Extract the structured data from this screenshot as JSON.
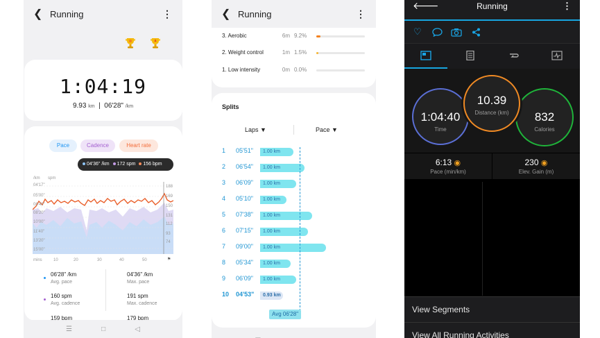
{
  "samsung_summary": {
    "title": "Running",
    "duration": "1:04:19",
    "distance": "9.93",
    "distance_unit": "km",
    "pace": "06'28\"",
    "pace_unit": "/km",
    "chart_tabs": [
      "Pace",
      "Cadence",
      "Heart rate"
    ],
    "tooltip": {
      "pace": "04'36\" /km",
      "cadence": "172 spm",
      "hr": "156 bpm"
    },
    "y_units": {
      "pace": "/km",
      "cadence": "spm"
    },
    "y_ticks_pace": [
      "04'17\"",
      "05'00\"",
      "06'40\"",
      "08'20\"",
      "10'00\"",
      "11'40\"",
      "13'20\"",
      "15'00\""
    ],
    "y_ticks_right": [
      "188",
      "169",
      "150",
      "131",
      "112",
      "93",
      "74"
    ],
    "x_unit": "mins",
    "x_ticks": [
      "10",
      "20",
      "30",
      "40",
      "50"
    ],
    "stats": [
      {
        "value": "06'28\" /km",
        "label": "Avg. pace"
      },
      {
        "value": "04'36\" /km",
        "label": "Max. pace"
      },
      {
        "value": "160 spm",
        "label": "Avg. cadence"
      },
      {
        "value": "191 spm",
        "label": "Max. cadence"
      },
      {
        "value": "159 bpm",
        "label": ""
      },
      {
        "value": "179 bpm",
        "label": ""
      }
    ],
    "colors": {
      "pace": "#2196f3",
      "cadence": "#a35fd0",
      "hr": "#f36d3a"
    }
  },
  "samsung_splits": {
    "title": "Running",
    "zones": [
      {
        "name": "3. Aerobic",
        "time": "6m",
        "percent": "9.2%",
        "fraction": 0.092,
        "color": "#f4821f"
      },
      {
        "name": "2. Weight control",
        "time": "1m",
        "percent": "1.5%",
        "fraction": 0.015,
        "color": "#f7b734"
      },
      {
        "name": "1. Low intensity",
        "time": "0m",
        "percent": "0.0%",
        "fraction": 0.0,
        "color": "#cccccc"
      }
    ],
    "splits_title": "Splits",
    "col_laps": "Laps",
    "col_pace": "Pace",
    "laps": [
      {
        "no": "1",
        "pace": "05'51\"",
        "dist": "1.00 km",
        "seconds": 351
      },
      {
        "no": "2",
        "pace": "06'54\"",
        "dist": "1.00 km",
        "seconds": 414
      },
      {
        "no": "3",
        "pace": "06'09\"",
        "dist": "1.00 km",
        "seconds": 369
      },
      {
        "no": "4",
        "pace": "05'10\"",
        "dist": "1.00 km",
        "seconds": 310
      },
      {
        "no": "5",
        "pace": "07'38\"",
        "dist": "1.00 km",
        "seconds": 458
      },
      {
        "no": "6",
        "pace": "07'15\"",
        "dist": "1.00 km",
        "seconds": 435
      },
      {
        "no": "7",
        "pace": "09'00\"",
        "dist": "1.00 km",
        "seconds": 540
      },
      {
        "no": "8",
        "pace": "05'34\"",
        "dist": "1.00 km",
        "seconds": 334
      },
      {
        "no": "9",
        "pace": "06'09\"",
        "dist": "1.00 km",
        "seconds": 369
      },
      {
        "no": "10",
        "pace": "04'53\"",
        "dist": "0.93 km",
        "seconds": 293
      }
    ],
    "avg_label": "Avg 06'28\"",
    "avg_seconds": 388
  },
  "garmin": {
    "title": "Running",
    "time": "1:04:40",
    "time_label": "Time",
    "distance": "10.39",
    "distance_label": "Distance (km)",
    "calories": "832",
    "calories_label": "Calories",
    "pace": "6:13",
    "pace_label": "Pace (min/km)",
    "elev": "230",
    "elev_label": "Elev. Gain (m)",
    "menu": [
      "View Segments",
      "View All Running Activities"
    ],
    "colors": {
      "accent": "#17a6e0",
      "time": "#5b6fd6",
      "distance": "#f08a24",
      "calories": "#1fb43a"
    }
  }
}
